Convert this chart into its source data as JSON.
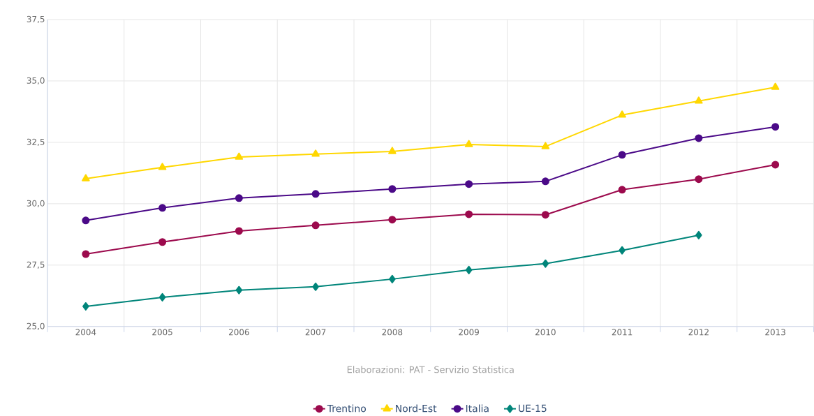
{
  "chart_data": {
    "type": "line",
    "categories": [
      "2004",
      "2005",
      "2006",
      "2007",
      "2008",
      "2009",
      "2010",
      "2011",
      "2012",
      "2013"
    ],
    "series": [
      {
        "name": "Trentino",
        "color": "#9c0a4d",
        "marker": "circle",
        "values": [
          27.95,
          28.44,
          28.89,
          29.12,
          29.35,
          29.57,
          29.55,
          30.57,
          31.0,
          31.59
        ]
      },
      {
        "name": "Nord-Est",
        "color": "#ffd700",
        "marker": "triangle",
        "values": [
          31.02,
          31.48,
          31.9,
          32.02,
          32.13,
          32.41,
          32.33,
          33.61,
          34.18,
          34.74
        ]
      },
      {
        "name": "Italia",
        "color": "#4b0a88",
        "marker": "circle",
        "values": [
          29.32,
          29.83,
          30.23,
          30.4,
          30.6,
          30.8,
          30.91,
          31.99,
          32.67,
          33.13
        ]
      },
      {
        "name": "UE-15",
        "color": "#00857a",
        "marker": "diamond",
        "values": [
          25.82,
          26.19,
          26.48,
          26.62,
          26.93,
          27.3,
          27.56,
          28.1,
          28.72,
          null
        ]
      }
    ],
    "ylim": [
      25,
      37.5
    ],
    "yticks": [
      {
        "value": 25,
        "label": "25,0"
      },
      {
        "value": 27.5,
        "label": "27,5"
      },
      {
        "value": 30,
        "label": "30,0"
      },
      {
        "value": 32.5,
        "label": "32,5"
      },
      {
        "value": 35,
        "label": "35,0"
      },
      {
        "value": 37.5,
        "label": "37,5"
      }
    ],
    "grid": true,
    "legend": "bottom",
    "line_style": "solid",
    "annotations": [
      "Elaborazioni: PAT - Servizio Statistica"
    ]
  }
}
